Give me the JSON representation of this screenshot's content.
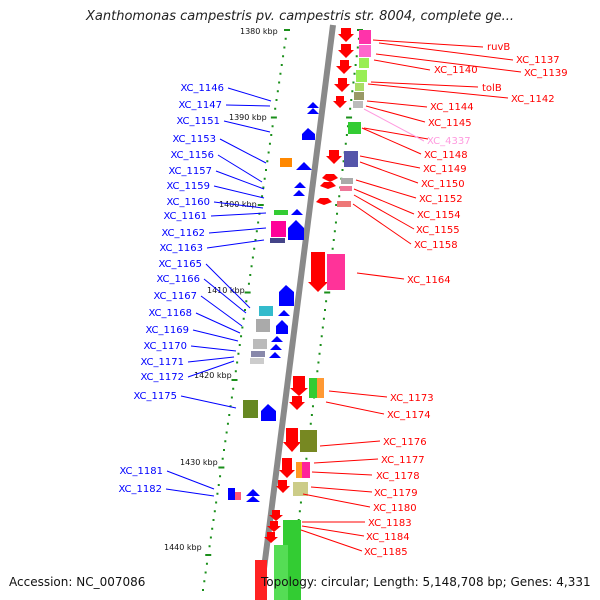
{
  "title": "Xanthomonas campestris pv. campestris str. 8004, complete ge...",
  "footer": {
    "accession": "Accession: NC_007086",
    "topology": "Topology: circular; Length: 5,148,708 bp; Genes: 4,331"
  },
  "colors": {
    "backbone": "#808080",
    "tick": "#1a8f1a",
    "left_strand_label": "#0000ff",
    "right_strand_label": "#ff0000",
    "highlight_label": "#ff9adf"
  },
  "scale_labels": [
    "1380 kbp",
    "1390 kbp",
    "1400 kbp",
    "1410 kbp",
    "1420 kbp",
    "1430 kbp",
    "1440 kbp"
  ],
  "left_labels": [
    "XC_1146",
    "XC_1147",
    "XC_1151",
    "XC_1153",
    "XC_1156",
    "XC_1157",
    "XC_1159",
    "XC_1160",
    "XC_1161",
    "XC_1162",
    "XC_1163",
    "XC_1165",
    "XC_1166",
    "XC_1167",
    "XC_1168",
    "XC_1169",
    "XC_1170",
    "XC_1171",
    "XC_1172",
    "XC_1175",
    "XC_1181",
    "XC_1182"
  ],
  "right_labels": [
    "ruvB",
    "XC_1137",
    "XC_1140",
    "XC_1139",
    "tolB",
    "XC_1142",
    "XC_1144",
    "XC_1145",
    "XC_4337",
    "XC_1148",
    "XC_1149",
    "XC_1150",
    "XC_1152",
    "XC_1154",
    "XC_1155",
    "XC_1158",
    "XC_1164",
    "XC_1173",
    "XC_1174",
    "XC_1176",
    "XC_1177",
    "XC_1178",
    "XC_1179",
    "XC_1180",
    "XC_1183",
    "XC_1184",
    "XC_1185"
  ],
  "highlighted_label": "XC_4337"
}
